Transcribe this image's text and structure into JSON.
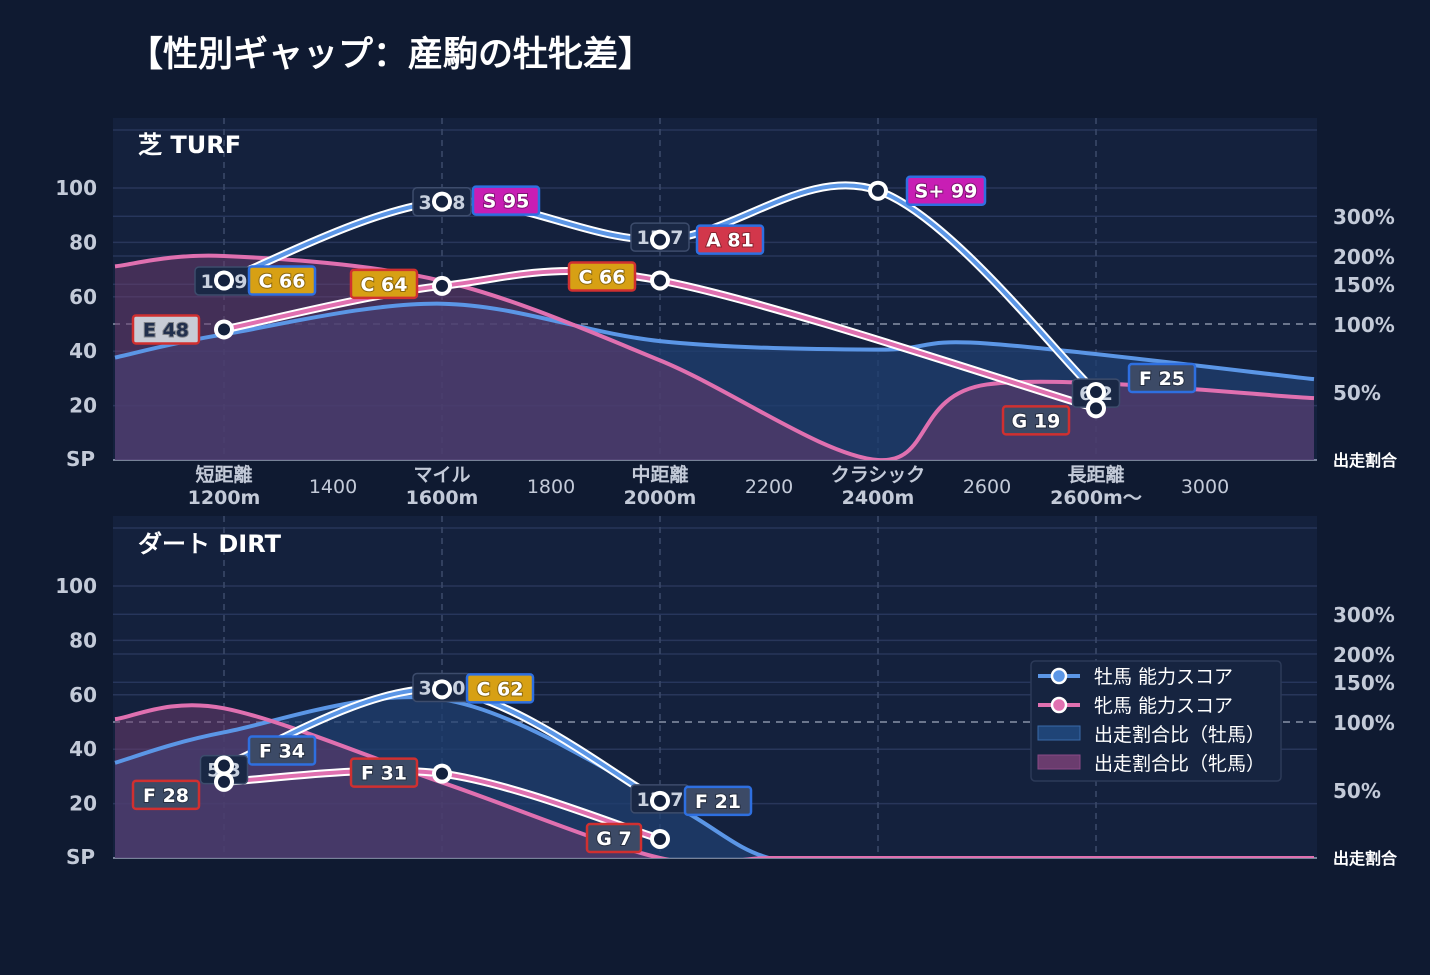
{
  "title": "【性別ギャップ：産駒の牡牝差】",
  "colors": {
    "background": "#0f1a31",
    "panel": "#14213d",
    "male": "#5b96e6",
    "female": "#e070b0",
    "grade_S_plus": "#c81eb4",
    "grade_S": "#c81eb4",
    "grade_A": "#d2374b",
    "grade_C": "#d7a014",
    "grade_E": "#c8ccd6",
    "grade_F": "#3c4a66",
    "grade_G": "#3c4a66",
    "border_male": "#2e6fe0",
    "border_female": "#d03030"
  },
  "legend": {
    "male_score": "牡馬 能力スコア",
    "female_score": "牝馬 能力スコア",
    "male_ratio": "出走割合比（牡馬）",
    "female_ratio": "出走割合比（牝馬）"
  },
  "axes": {
    "y_left_ticks": [
      "100",
      "80",
      "60",
      "40",
      "20"
    ],
    "y_left_bottom": "SP",
    "y_right_ticks": [
      "300%",
      "200%",
      "150%",
      "100%",
      "50%"
    ],
    "y_right_bottom": "出走割合",
    "x_categories": [
      {
        "line1": "短距離",
        "line2": "1200m"
      },
      {
        "line1": "マイル",
        "line2": "1600m"
      },
      {
        "line1": "中距離",
        "line2": "2000m"
      },
      {
        "line1": "クラシック",
        "line2": "2400m"
      },
      {
        "line1": "長距離",
        "line2": "2600m〜"
      }
    ],
    "x_numbers": [
      "1400",
      "1800",
      "2200",
      "2600",
      "3000"
    ]
  },
  "chart_data": [
    {
      "type": "line",
      "title": "芝 TURF",
      "categories": [
        "1200m",
        "1600m",
        "2000m",
        "2400m",
        "2600m〜"
      ],
      "ylim": [
        0,
        100
      ],
      "right_axis": {
        "scale": "log2",
        "ticks_percent": [
          50,
          100,
          150,
          200,
          300
        ]
      },
      "grid": true,
      "legend_position": "none",
      "series": [
        {
          "name": "牡馬 能力スコア",
          "values": [
            66,
            95,
            81,
            99,
            25
          ],
          "grades": [
            "C 66",
            "S 95",
            "A 81",
            "S+ 99",
            "F 25"
          ],
          "grade_kind": [
            "C",
            "S",
            "A",
            "S+",
            "F"
          ]
        },
        {
          "name": "牝馬 能力スコア",
          "values": [
            48,
            64,
            66,
            null,
            19
          ],
          "grades": [
            "E 48",
            "C 64",
            "C 66",
            null,
            "G 19"
          ],
          "grade_kind": [
            "E",
            "C",
            "C",
            null,
            "G"
          ]
        }
      ],
      "score_gaps": [
        "17.9",
        "30.8",
        "15.7",
        null,
        "6.2"
      ],
      "ratio_area": {
        "x": [
          1000,
          1200,
          1600,
          2000,
          2400,
          2600,
          3200
        ],
        "male_percent": [
          71,
          90,
          123,
          84,
          77,
          82,
          57
        ],
        "female_percent": [
          180,
          200,
          155,
          69,
          20,
          54,
          47
        ]
      }
    },
    {
      "type": "line",
      "title": "ダート DIRT",
      "categories": [
        "1200m",
        "1600m",
        "2000m"
      ],
      "ylim": [
        0,
        100
      ],
      "right_axis": {
        "scale": "log2",
        "ticks_percent": [
          50,
          100,
          150,
          200,
          300
        ]
      },
      "grid": true,
      "legend_position": "center-right",
      "series": [
        {
          "name": "牡馬 能力スコア",
          "values": [
            34,
            62,
            21
          ],
          "grades": [
            "F 34",
            "C 62",
            "F 21"
          ],
          "grade_kind": [
            "F",
            "C",
            "F"
          ]
        },
        {
          "name": "牝馬 能力スコア",
          "values": [
            28,
            31,
            7
          ],
          "grades": [
            "F 28",
            "F 31",
            "G 7"
          ],
          "grade_kind": [
            "F",
            "F",
            "G"
          ]
        }
      ],
      "score_gaps": [
        "5.3",
        "31.0",
        "13.7"
      ],
      "ratio_area": {
        "x": [
          1000,
          1200,
          1600,
          2000,
          2200,
          2400,
          3200
        ],
        "male_percent": [
          66,
          90,
          126,
          46,
          20,
          0,
          0
        ],
        "female_percent": [
          103,
          115,
          54,
          25,
          10,
          0,
          0
        ]
      }
    }
  ]
}
